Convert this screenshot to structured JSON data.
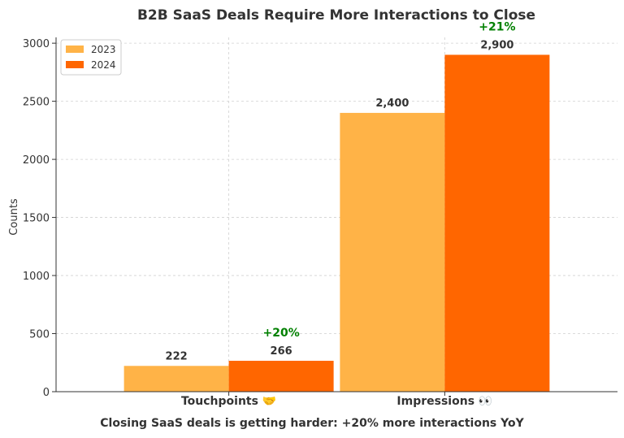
{
  "chart_data": {
    "type": "bar",
    "title": "B2B SaaS Deals Require More Interactions to Close",
    "ylabel": "Counts",
    "xlabel": "",
    "caption": "Closing SaaS deals is getting harder: +20% more interactions YoY",
    "categories": [
      "Touchpoints 🤝",
      "Impressions 👀"
    ],
    "series": [
      {
        "name": "2023",
        "values": [
          222,
          2400
        ],
        "labels": [
          "222",
          "2,400"
        ],
        "color": "#FFB347"
      },
      {
        "name": "2024",
        "values": [
          266,
          2900
        ],
        "labels": [
          "266",
          "2,900"
        ],
        "color": "#FF6600"
      }
    ],
    "growth_labels": [
      "+20%",
      "+21%"
    ],
    "growth_color": "#008000",
    "ylim": [
      0,
      3050
    ],
    "yticks": [
      0,
      500,
      1000,
      1500,
      2000,
      2500,
      3000
    ],
    "grid": true,
    "legend_position": "top-left"
  }
}
